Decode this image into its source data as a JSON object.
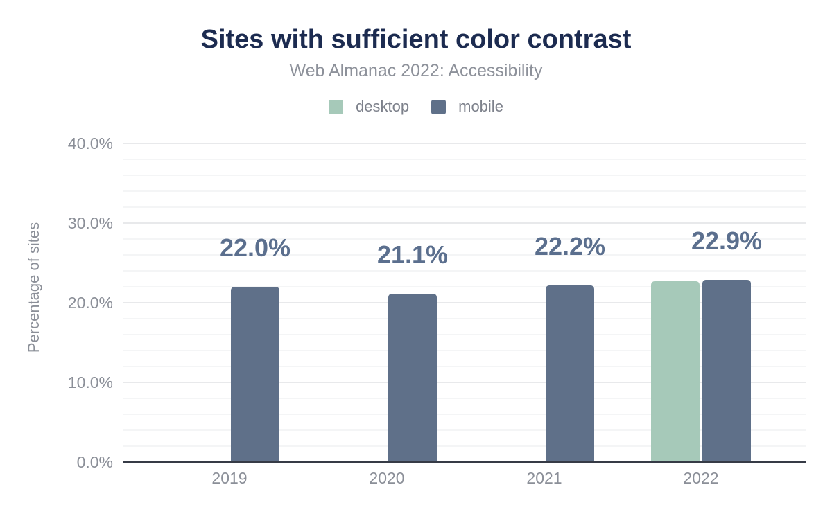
{
  "header": {
    "title": "Sites with sufficient color contrast",
    "subtitle": "Web Almanac 2022: Accessibility"
  },
  "legend": {
    "items": [
      {
        "label": "desktop",
        "color": "#a6c9b9"
      },
      {
        "label": "mobile",
        "color": "#5f7089"
      }
    ]
  },
  "colors": {
    "title": "#1c2b50",
    "subtitle": "#8d919a",
    "legend_text": "#7d818b",
    "tick_label": "#8b8f98",
    "axis_title": "#8b8f98",
    "data_label": "#5b6f8e",
    "axis_line": "#363b46",
    "grid_major": "#e8e9eb",
    "grid_minor": "#f4f5f6",
    "desktop": "#a6c9b9",
    "mobile": "#5f7089"
  },
  "chart_data": {
    "type": "bar",
    "title": "Sites with sufficient color contrast",
    "subtitle": "Web Almanac 2022: Accessibility",
    "categories": [
      "2019",
      "2020",
      "2021",
      "2022"
    ],
    "series": [
      {
        "name": "desktop",
        "color": "#a6c9b9",
        "values": [
          null,
          null,
          null,
          22.7
        ]
      },
      {
        "name": "mobile",
        "color": "#5f7089",
        "values": [
          22.0,
          21.1,
          22.2,
          22.9
        ]
      }
    ],
    "data_labels": {
      "series": "mobile",
      "values": [
        "22.0%",
        "21.1%",
        "22.2%",
        "22.9%"
      ]
    },
    "xlabel": "",
    "ylabel": "Percentage of sites",
    "ylim": [
      0,
      40
    ],
    "y_tick_labels": [
      "0.0%",
      "10.0%",
      "20.0%",
      "30.0%",
      "40.0%"
    ],
    "y_major_step": 10,
    "y_minor_step": 2,
    "grid": true,
    "legend_position": "top"
  }
}
